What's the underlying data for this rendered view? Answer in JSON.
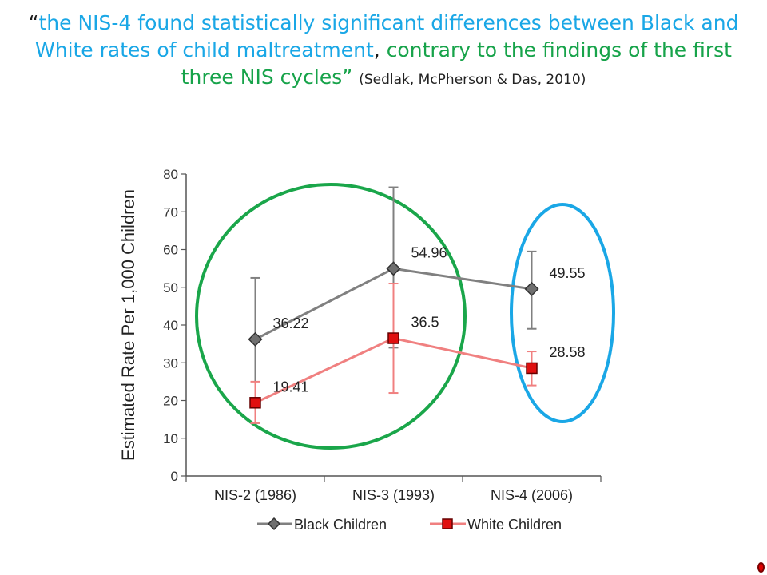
{
  "quote": {
    "open_mark": "“",
    "part1": "the NIS-4 found statistically significant differences between Black and White rates of child maltreatment",
    "comma": ", ",
    "part2": "contrary to the findings of the first three NIS cycles",
    "close_mark": "”",
    "citation": "(Sedlak, McPherson & Das, 2010)"
  },
  "chart_data": {
    "type": "line",
    "ylabel": "Estimated Rate Per 1,000 Children",
    "xlabel": "",
    "categories": [
      "NIS-2 (1986)",
      "NIS-3 (1993)",
      "NIS-4 (2006)"
    ],
    "ylim": [
      0,
      80
    ],
    "yticks": [
      0,
      10,
      20,
      30,
      40,
      50,
      60,
      70,
      80
    ],
    "series": [
      {
        "name": "Black Children",
        "values": [
          36.22,
          54.96,
          49.55
        ],
        "labels": [
          "36.22",
          "54.96",
          "49.55"
        ],
        "error_low": [
          14,
          34,
          39
        ],
        "error_high": [
          52.5,
          76.5,
          59.5
        ],
        "color": "#808080",
        "marker": "diamond"
      },
      {
        "name": "White Children",
        "values": [
          19.41,
          36.5,
          28.58
        ],
        "labels": [
          "19.41",
          "36.5",
          "28.58"
        ],
        "error_low": [
          14,
          22,
          24
        ],
        "error_high": [
          25,
          51,
          33
        ],
        "color": "#f08080",
        "marker": "square",
        "marker_color": "#e01010"
      }
    ],
    "legend_position": "bottom",
    "grid": false,
    "annotations": {
      "green_circle_color": "#1aa64a",
      "blue_ellipse_color": "#1aa7e6"
    }
  }
}
